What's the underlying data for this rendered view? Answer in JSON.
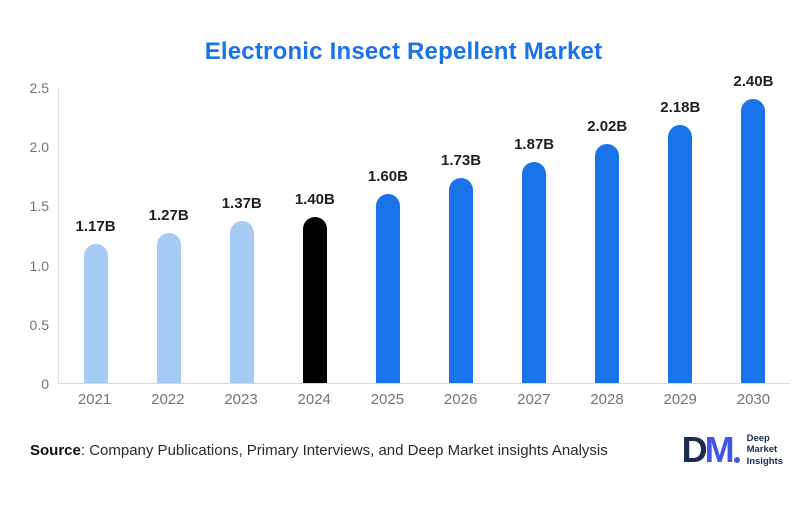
{
  "page": {
    "title": "Electronic Insect Repellent Market"
  },
  "chart_data": {
    "type": "bar",
    "title": "Electronic Insect Repellent Market",
    "categories": [
      "2021",
      "2022",
      "2023",
      "2024",
      "2025",
      "2026",
      "2027",
      "2028",
      "2029",
      "2030"
    ],
    "values": [
      1.17,
      1.27,
      1.37,
      1.4,
      1.6,
      1.73,
      1.87,
      2.02,
      2.18,
      2.4
    ],
    "value_labels": [
      "1.17B",
      "1.27B",
      "1.37B",
      "1.40B",
      "1.60B",
      "1.73B",
      "1.87B",
      "2.02B",
      "2.18B",
      "2.40B"
    ],
    "bar_colors": [
      "#a6ccf5",
      "#a6ccf5",
      "#a6ccf5",
      "#000000",
      "#1a73e8",
      "#1a73e8",
      "#1a73e8",
      "#1a73e8",
      "#1a73e8",
      "#1a73e8"
    ],
    "y_ticks": [
      "2.5",
      "2.0",
      "1.5",
      "1.0",
      "0.5",
      "0"
    ],
    "y_tick_values": [
      2.5,
      2.0,
      1.5,
      1.0,
      0.5,
      0
    ],
    "ylim": [
      0,
      2.5
    ],
    "xlabel": "",
    "ylabel": "",
    "grid": false,
    "legend": false
  },
  "footer": {
    "source_label": "Source",
    "source_rest": ": Company Publications, Primary Interviews, and Deep Market insights Analysis"
  },
  "logo": {
    "letter_d": "D",
    "letter_m": "M",
    "lines": [
      "Deep",
      "Market",
      "Insights"
    ]
  },
  "colors": {
    "title_blue": "#1a73e8",
    "bar_blue": "#1a73e8",
    "bar_light_blue": "#a6ccf5",
    "bar_black": "#000000",
    "axis_line": "#e2e2e2",
    "tick_label_gray": "#757575",
    "value_label": "#1f1f1f",
    "logo_navy": "#1d2b50",
    "logo_indigo": "#4355e8"
  }
}
